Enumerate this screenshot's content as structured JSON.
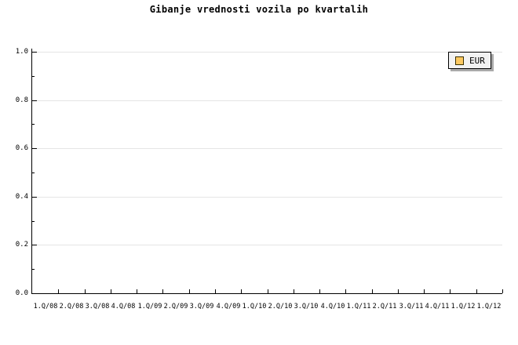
{
  "chart_data": {
    "type": "line",
    "title": "Gibanje vrednosti vozila po kvartalih",
    "xlabel": "",
    "ylabel": "",
    "categories": [
      "1.Q/08",
      "2.Q/08",
      "3.Q/08",
      "4.Q/08",
      "1.Q/09",
      "2.Q/09",
      "3.Q/09",
      "4.Q/09",
      "1.Q/10",
      "2.Q/10",
      "3.Q/10",
      "4.Q/10",
      "1.Q/11",
      "2.Q/11",
      "3.Q/11",
      "4.Q/11",
      "1.Q/12",
      "1.Q/12"
    ],
    "series": [
      {
        "name": "EUR",
        "color": "#fcc861",
        "values": []
      }
    ],
    "ylim": [
      0.0,
      1.0
    ],
    "yticks": [
      0.0,
      0.2,
      0.4,
      0.6,
      0.8,
      1.0
    ],
    "ytick_labels": [
      "0.0",
      "0.2",
      "0.4",
      "0.6",
      "0.8",
      "1.0"
    ],
    "minor_ytick_interval": 0.1,
    "grid": "horizontal gridlines at major y ticks",
    "legend_position": "top-right"
  },
  "legend": {
    "label": "EUR",
    "swatch_color": "#fcc861"
  },
  "colors": {
    "background": "#ffffff",
    "axis": "#000000",
    "grid": "#e5e5e5",
    "text": "#000000",
    "legend_bg": "#f2f2f2",
    "legend_border": "#000000",
    "legend_shadow": "#aaaaaa",
    "swatch_border": "#3a3000"
  }
}
